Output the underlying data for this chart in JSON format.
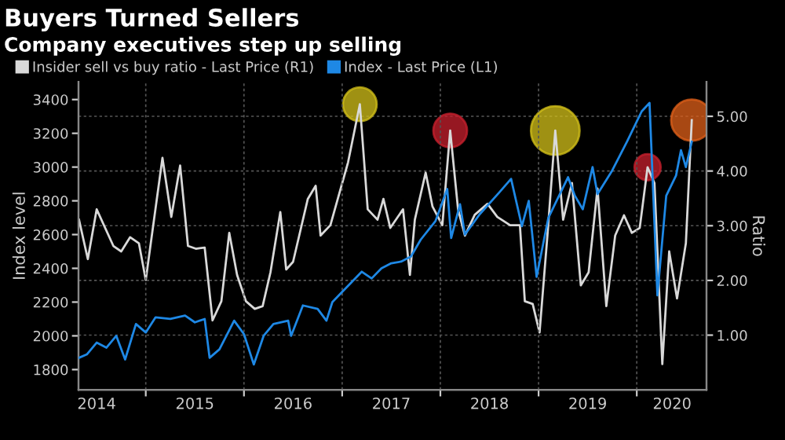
{
  "chart_data": {
    "type": "line",
    "title": "Buyers Turned Sellers",
    "subtitle": "Company executives step up selling",
    "ylabel": "Index level",
    "y2label": "Ratio",
    "xlim": [
      2014.315,
      2020.71
    ],
    "xticks": [
      {
        "value": 2015,
        "label": null
      },
      {
        "value": 2016,
        "label": null
      },
      {
        "value": 2017,
        "label": null
      },
      {
        "value": 2018,
        "label": null
      },
      {
        "value": 2019,
        "label": null
      },
      {
        "value": 2020,
        "label": null
      },
      {
        "value": 2014.5,
        "label": "2014"
      },
      {
        "value": 2015.5,
        "label": "2015"
      },
      {
        "value": 2016.5,
        "label": "2016"
      },
      {
        "value": 2017.5,
        "label": "2017"
      },
      {
        "value": 2018.5,
        "label": "2018"
      },
      {
        "value": 2019.5,
        "label": "2019"
      },
      {
        "value": 2020.36,
        "label": "2020"
      }
    ],
    "ylim": [
      1680,
      3505
    ],
    "yticks": [
      1800,
      2000,
      2200,
      2400,
      2600,
      2800,
      3000,
      3200,
      3400
    ],
    "y2lim": [
      0,
      5.63
    ],
    "y2ticks": [
      {
        "value": 1,
        "label": "1.00"
      },
      {
        "value": 2,
        "label": "2.00"
      },
      {
        "value": 3,
        "label": "3.00"
      },
      {
        "value": 4,
        "label": "4.00"
      },
      {
        "value": 5,
        "label": "5.00"
      }
    ],
    "grid": true,
    "legend": "top left",
    "series": [
      {
        "name": "Insider sell vs buy ratio - Last Price (R1)",
        "color": "#d9d9d9",
        "axis": "y2",
        "x": [
          2014.32,
          2014.41,
          2014.5,
          2014.67,
          2014.75,
          2014.84,
          2014.93,
          2015.0,
          2015.17,
          2015.26,
          2015.35,
          2015.43,
          2015.51,
          2015.6,
          2015.68,
          2015.77,
          2015.85,
          2015.93,
          2016.02,
          2016.11,
          2016.19,
          2016.27,
          2016.37,
          2016.43,
          2016.5,
          2016.65,
          2016.73,
          2016.78,
          2016.88,
          2017.06,
          2017.18,
          2017.26,
          2017.36,
          2017.42,
          2017.49,
          2017.62,
          2017.69,
          2017.74,
          2017.85,
          2017.92,
          2018.02,
          2018.1,
          2018.18,
          2018.25,
          2018.35,
          2018.48,
          2018.58,
          2018.71,
          2018.81,
          2018.86,
          2018.94,
          2019.01,
          2019.09,
          2019.17,
          2019.25,
          2019.34,
          2019.43,
          2019.51,
          2019.6,
          2019.69,
          2019.78,
          2019.87,
          2019.95,
          2020.03,
          2020.11,
          2020.18,
          2020.26,
          2020.33,
          2020.41,
          2020.5,
          2020.56
        ],
        "values": [
          3.11,
          2.39,
          3.3,
          2.63,
          2.53,
          2.79,
          2.68,
          2.01,
          4.24,
          3.16,
          4.1,
          2.63,
          2.58,
          2.6,
          1.27,
          1.62,
          2.87,
          2.1,
          1.62,
          1.48,
          1.53,
          2.15,
          3.25,
          2.2,
          2.34,
          3.49,
          3.73,
          2.82,
          3.01,
          4.16,
          5.22,
          3.3,
          3.11,
          3.49,
          2.96,
          3.3,
          2.1,
          3.11,
          3.97,
          3.35,
          3.01,
          4.74,
          3.3,
          2.82,
          3.2,
          3.4,
          3.16,
          3.01,
          3.01,
          1.62,
          1.57,
          1.05,
          2.82,
          4.74,
          3.11,
          3.78,
          1.91,
          2.15,
          3.68,
          1.53,
          2.82,
          3.19,
          2.87,
          2.96,
          4.07,
          3.78,
          0.47,
          2.53,
          1.67,
          2.68,
          4.93
        ]
      },
      {
        "name": "Index - Last Price (L1)",
        "color": "#1e88e5",
        "x": [
          2014.32,
          2014.4,
          2014.5,
          2014.6,
          2014.7,
          2014.79,
          2014.9,
          2015.0,
          2015.1,
          2015.25,
          2015.4,
          2015.5,
          2015.6,
          2015.65,
          2015.75,
          2015.9,
          2016.0,
          2016.1,
          2016.2,
          2016.3,
          2016.45,
          2016.48,
          2016.6,
          2016.75,
          2016.84,
          2016.9,
          2017.0,
          2017.2,
          2017.3,
          2017.4,
          2017.5,
          2017.6,
          2017.7,
          2017.8,
          2017.95,
          2018.07,
          2018.11,
          2018.2,
          2018.25,
          2018.4,
          2018.6,
          2018.72,
          2018.83,
          2018.9,
          2018.98,
          2019.1,
          2019.3,
          2019.37,
          2019.45,
          2019.55,
          2019.6,
          2019.75,
          2019.9,
          2020.05,
          2020.13,
          2020.21,
          2020.3,
          2020.4,
          2020.45,
          2020.5,
          2020.56
        ],
        "values": [
          1870,
          1890,
          1960,
          1930,
          2000,
          1860,
          2070,
          2020,
          2110,
          2100,
          2120,
          2080,
          2100,
          1870,
          1920,
          2090,
          2010,
          1830,
          2000,
          2070,
          2090,
          2000,
          2180,
          2160,
          2090,
          2200,
          2260,
          2380,
          2340,
          2400,
          2430,
          2440,
          2470,
          2570,
          2680,
          2870,
          2580,
          2780,
          2600,
          2720,
          2850,
          2930,
          2650,
          2800,
          2350,
          2700,
          2940,
          2830,
          2750,
          3000,
          2840,
          2980,
          3150,
          3330,
          3380,
          2240,
          2830,
          2950,
          3100,
          3000,
          3150
        ]
      },
      {
        "type": "bubble",
        "axis": "y2",
        "x": [
          2017.18,
          2018.1,
          2019.17,
          2020.11,
          2020.56
        ],
        "values": [
          5.22,
          4.74,
          4.74,
          4.07,
          4.93
        ],
        "sizes": [
          0.48,
          0.48,
          1,
          0.29,
          0.72
        ],
        "colors": [
          "#d4c21a",
          "#c8202e",
          "#d4c21a",
          "#c8202e",
          "#e0601a"
        ]
      }
    ]
  }
}
